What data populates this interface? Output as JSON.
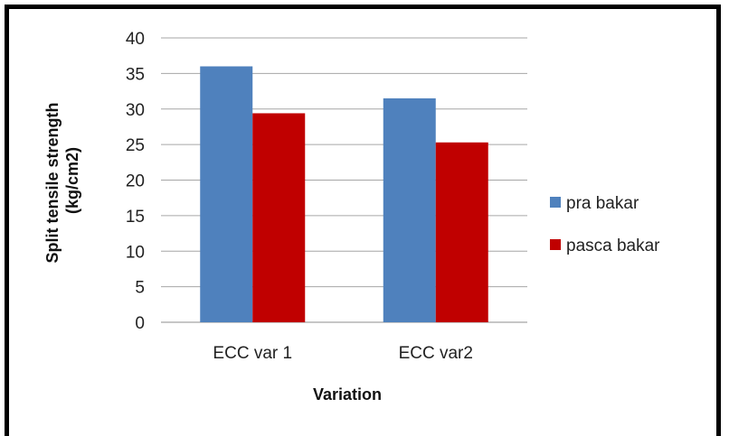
{
  "chart_data": {
    "type": "bar",
    "title": "",
    "xlabel": "Variation",
    "ylabel_line1": "Split tensile strength",
    "ylabel_line2": "(kg/cm2)",
    "categories": [
      "ECC var 1",
      "ECC var2"
    ],
    "series": [
      {
        "name": "pra bakar",
        "values": [
          36,
          31.5
        ],
        "color": "#4f81bd"
      },
      {
        "name": "pasca bakar",
        "values": [
          29.4,
          25.3
        ],
        "color": "#c00000"
      }
    ],
    "ylim": [
      0,
      40
    ],
    "yticks": [
      0,
      5,
      10,
      15,
      20,
      25,
      30,
      35,
      40
    ],
    "grid": true,
    "legend_position": "right"
  }
}
